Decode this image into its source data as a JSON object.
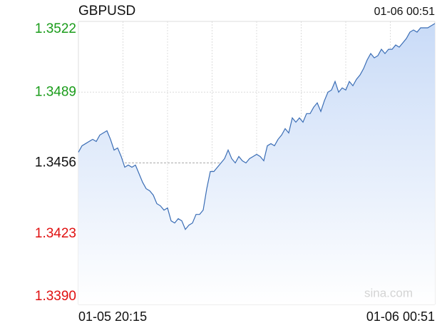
{
  "chart_data": {
    "type": "line",
    "title": "GBPUSD",
    "timestamp": "01-06 00:51",
    "x_start_label": "01-05 20:15",
    "x_end_label": "01-06 00:51",
    "watermark": "sina.com",
    "color": "#3a6db5",
    "up_color": "#1a9c1a",
    "down_color": "#e01010",
    "ylim": [
      1.339,
      1.3522
    ],
    "yticks": [
      {
        "value": 1.339,
        "label": "1.3390"
      },
      1.3423,
      1.3456,
      1.3489,
      1.3522
    ],
    "values": [
      1.3461,
      1.3464,
      1.3465,
      1.3466,
      1.3467,
      1.3466,
      1.3469,
      1.347,
      1.3471,
      1.3467,
      1.3462,
      1.3463,
      1.3459,
      1.3454,
      1.3455,
      1.3454,
      1.3455,
      1.3451,
      1.3447,
      1.3444,
      1.3443,
      1.3441,
      1.3437,
      1.3436,
      1.3434,
      1.3435,
      1.3429,
      1.3428,
      1.343,
      1.3429,
      1.3425,
      1.3427,
      1.3428,
      1.3432,
      1.3432,
      1.3434,
      1.3444,
      1.3452,
      1.3452,
      1.3454,
      1.3456,
      1.3458,
      1.3462,
      1.3458,
      1.3456,
      1.3459,
      1.3457,
      1.3456,
      1.3458,
      1.3459,
      1.346,
      1.3459,
      1.3457,
      1.3464,
      1.3465,
      1.3464,
      1.3467,
      1.3469,
      1.3472,
      1.347,
      1.3477,
      1.3475,
      1.3477,
      1.3475,
      1.3479,
      1.3479,
      1.3482,
      1.3484,
      1.348,
      1.3485,
      1.3489,
      1.349,
      1.3494,
      1.3489,
      1.3491,
      1.349,
      1.3494,
      1.3492,
      1.3495,
      1.3497,
      1.35,
      1.3504,
      1.3507,
      1.3505,
      1.3506,
      1.3509,
      1.3507,
      1.3509,
      1.3509,
      1.3511,
      1.351,
      1.3512,
      1.3514,
      1.3517,
      1.3518,
      1.3517,
      1.3519,
      1.3519,
      1.3519,
      1.352,
      1.3521
    ]
  }
}
